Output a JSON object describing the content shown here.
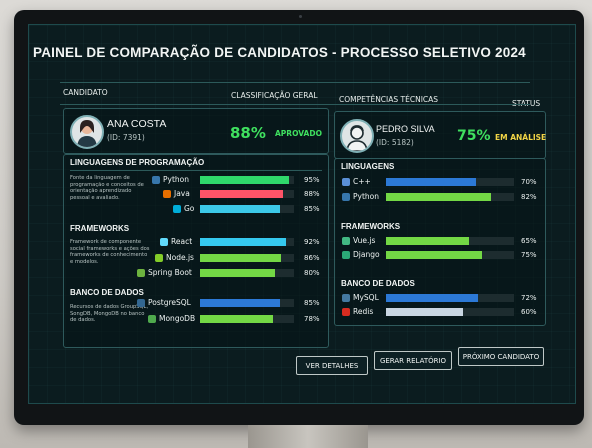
{
  "dashboard": {
    "title": "PAINEL DE COMPARAÇÃO DE CANDIDATOS - PROCESSO SELETIVO 2024",
    "headers": {
      "candidate": "CANDIDATO",
      "overall": "CLASSIFICAÇÃO GERAL",
      "skills": "COMPETÊNCIAS TÉCNICAS",
      "status": "STATUS"
    }
  },
  "candidate1": {
    "name": "ANA COSTA",
    "id": "(ID: 7391)",
    "score": "88%",
    "status": "APROVADO",
    "status_color": "#3fe05f",
    "sections": {
      "languages": {
        "title": "LINGUAGENS DE PROGRAMAÇÃO",
        "desc": "Fonte da linguagem de programação e conceitos de orientação aprendizado pessoal e avaliado.",
        "items": [
          {
            "name": "Python",
            "pct": "95%",
            "value": 0.95,
            "color": "#2fd96b",
            "icon": "python-icon"
          },
          {
            "name": "Java",
            "pct": "88%",
            "value": 0.88,
            "color": "#ff5468",
            "icon": "java-icon"
          },
          {
            "name": "Go",
            "pct": "85%",
            "value": 0.85,
            "color": "#3cc9e8",
            "icon": "go-icon"
          }
        ]
      },
      "frameworks": {
        "title": "FRAMEWORKS",
        "desc": "Framework de componente social frameworks e ações dos frameworks de conhecimento e modelos.",
        "items": [
          {
            "name": "React",
            "pct": "92%",
            "value": 0.92,
            "color": "#35c9ef",
            "icon": "react-icon"
          },
          {
            "name": "Node.js",
            "pct": "86%",
            "value": 0.86,
            "color": "#73d845",
            "icon": "nodejs-icon"
          },
          {
            "name": "Spring Boot",
            "pct": "80%",
            "value": 0.8,
            "color": "#73d845",
            "icon": "spring-icon"
          }
        ]
      },
      "databases": {
        "title": "BANCO DE DADOS",
        "desc": "Recursos de dados GroupSQL, SongDB, MongoDB no banco de dados.",
        "items": [
          {
            "name": "PostgreSQL",
            "pct": "85%",
            "value": 0.85,
            "color": "#2c79d6",
            "icon": "postgresql-icon"
          },
          {
            "name": "MongoDB",
            "pct": "78%",
            "value": 0.78,
            "color": "#73d845",
            "icon": "mongodb-icon"
          }
        ]
      }
    }
  },
  "candidate2": {
    "name": "PEDRO SILVA",
    "id": "(ID: 5182)",
    "score": "75%",
    "status": "EM ANÁLISE",
    "status_color": "#f2d546",
    "sections": {
      "languages": {
        "title": "LINGUAGENS",
        "items": [
          {
            "name": "C++",
            "pct": "70%",
            "value": 0.7,
            "color": "#2c79d6",
            "icon": "cpp-icon"
          },
          {
            "name": "Python",
            "pct": "82%",
            "value": 0.82,
            "color": "#73d845",
            "icon": "python-icon"
          }
        ]
      },
      "frameworks": {
        "title": "FRAMEWORKS",
        "items": [
          {
            "name": "Vue.js",
            "pct": "65%",
            "value": 0.65,
            "color": "#73d845",
            "icon": "vue-icon"
          },
          {
            "name": "Django",
            "pct": "75%",
            "value": 0.75,
            "color": "#73d845",
            "icon": "django-icon"
          }
        ]
      },
      "databases": {
        "title": "BANCO DE DADOS",
        "items": [
          {
            "name": "MySQL",
            "pct": "72%",
            "value": 0.72,
            "color": "#2c79d6",
            "icon": "mysql-icon"
          },
          {
            "name": "Redis",
            "pct": "60%",
            "value": 0.6,
            "color": "#c9d6e2",
            "icon": "redis-icon"
          }
        ]
      }
    }
  },
  "buttons": {
    "details": "VER DETALHES",
    "report": "GERAR RELATÓRIO",
    "next": "PRÓXIMO CANDIDATO"
  }
}
